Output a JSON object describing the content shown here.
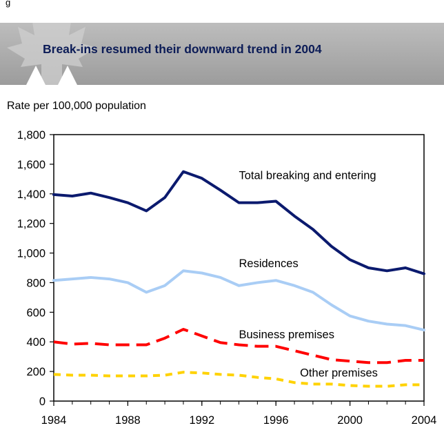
{
  "figure_label": "g",
  "banner": {
    "title": "Break-ins resumed their downward trend in 2004",
    "icon": "maple-leaf-icon"
  },
  "chart_data": {
    "type": "line",
    "title": "Break-ins resumed their downward trend in 2004",
    "ylabel": "Rate per 100,000 population",
    "xlabel": "",
    "xlim": [
      1984,
      2004
    ],
    "ylim": [
      0,
      1800
    ],
    "xticks": [
      "1984",
      "1988",
      "1992",
      "1996",
      "2000",
      "2004"
    ],
    "yticks": [
      "0",
      "200",
      "400",
      "600",
      "800",
      "1,000",
      "1,200",
      "1,400",
      "1,600",
      "1,800"
    ],
    "x": [
      1984,
      1985,
      1986,
      1987,
      1988,
      1989,
      1990,
      1991,
      1992,
      1993,
      1994,
      1995,
      1996,
      1997,
      1998,
      1999,
      2000,
      2001,
      2002,
      2003,
      2004
    ],
    "series": [
      {
        "name": "Total breaking and entering",
        "color": "#0b1a6e",
        "style": "solid",
        "values": [
          1395,
          1385,
          1405,
          1375,
          1340,
          1285,
          1375,
          1550,
          1505,
          1425,
          1340,
          1340,
          1350,
          1250,
          1160,
          1045,
          955,
          900,
          880,
          900,
          860
        ]
      },
      {
        "name": "Residences",
        "color": "#a9cdf5",
        "style": "solid",
        "values": [
          815,
          825,
          835,
          825,
          800,
          735,
          780,
          880,
          865,
          835,
          780,
          800,
          815,
          780,
          735,
          650,
          575,
          540,
          520,
          510,
          480
        ]
      },
      {
        "name": "Business premises",
        "color": "#ff0000",
        "style": "dashed",
        "values": [
          400,
          385,
          390,
          380,
          380,
          380,
          425,
          485,
          440,
          395,
          380,
          370,
          370,
          340,
          310,
          280,
          270,
          260,
          260,
          275,
          275
        ]
      },
      {
        "name": "Other premises",
        "color": "#ffd200",
        "style": "dotted",
        "values": [
          180,
          175,
          175,
          170,
          170,
          170,
          175,
          195,
          190,
          180,
          175,
          160,
          150,
          125,
          115,
          115,
          105,
          100,
          100,
          110,
          110
        ]
      }
    ],
    "grid": false,
    "legend": "inline labels beside each line"
  }
}
